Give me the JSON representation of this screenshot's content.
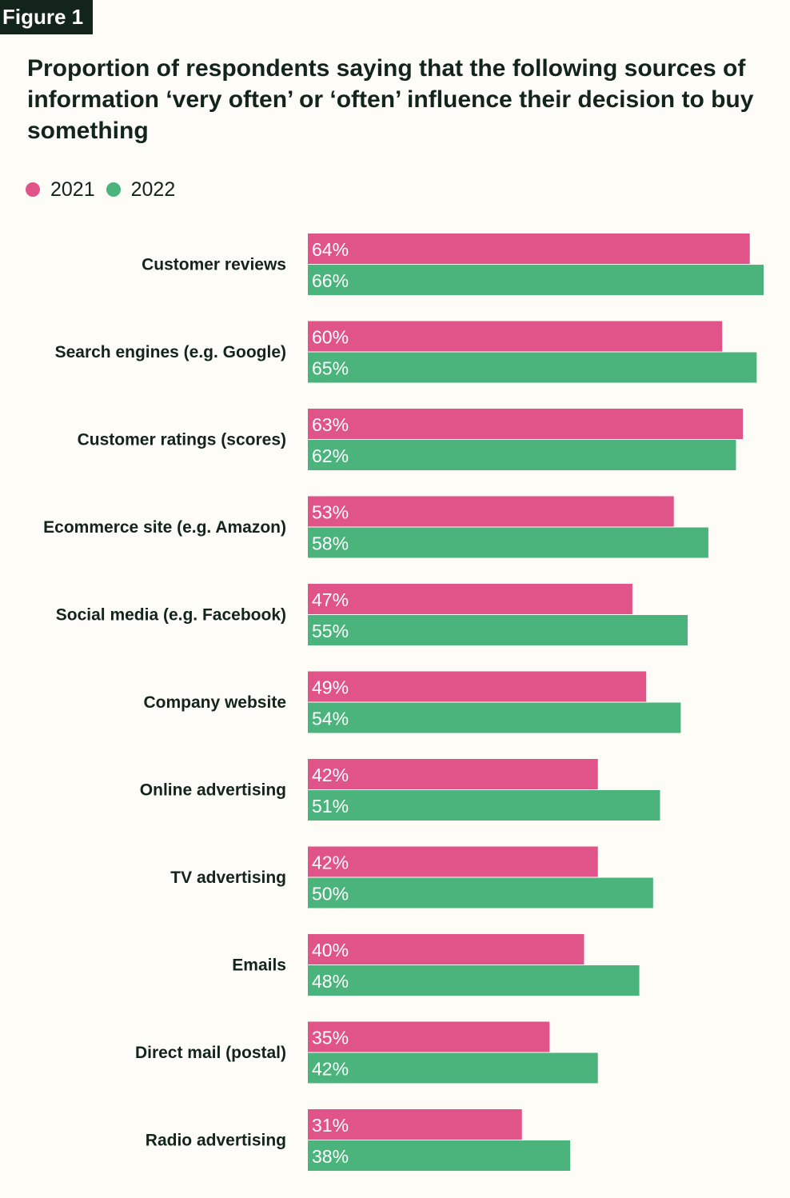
{
  "figure_label": "Figure 1",
  "colors": {
    "series_2021": "#e0548a",
    "series_2022": "#4bb47d",
    "background": "#fdfcf6",
    "text": "#13241b"
  },
  "chart_data": {
    "type": "bar",
    "orientation": "horizontal",
    "title": "Proportion of respondents saying that the following sources of information ‘very often’ or ‘often’ influence their decision to buy something",
    "xlabel": "",
    "ylabel": "",
    "xlim": [
      0,
      66
    ],
    "grid": false,
    "legend_position": "top-left",
    "categories": [
      "Customer reviews",
      "Search engines (e.g. Google)",
      "Customer ratings (scores)",
      "Ecommerce site (e.g. Amazon)",
      "Social media (e.g. Facebook)",
      "Company website",
      "Online advertising",
      "TV advertising",
      "Emails",
      "Direct mail (postal)",
      "Radio advertising"
    ],
    "series": [
      {
        "name": "2021",
        "color": "#e0548a",
        "values": [
          64,
          60,
          63,
          53,
          47,
          49,
          42,
          42,
          40,
          35,
          31
        ],
        "labels": [
          "64%",
          "60%",
          "63%",
          "53%",
          "47%",
          "49%",
          "42%",
          "42%",
          "40%",
          "35%",
          "31%"
        ]
      },
      {
        "name": "2022",
        "color": "#4bb47d",
        "values": [
          66,
          65,
          62,
          58,
          55,
          54,
          51,
          50,
          48,
          42,
          38
        ],
        "labels": [
          "66%",
          "65%",
          "62%",
          "58%",
          "55%",
          "54%",
          "51%",
          "50%",
          "48%",
          "42%",
          "38%"
        ]
      }
    ]
  }
}
